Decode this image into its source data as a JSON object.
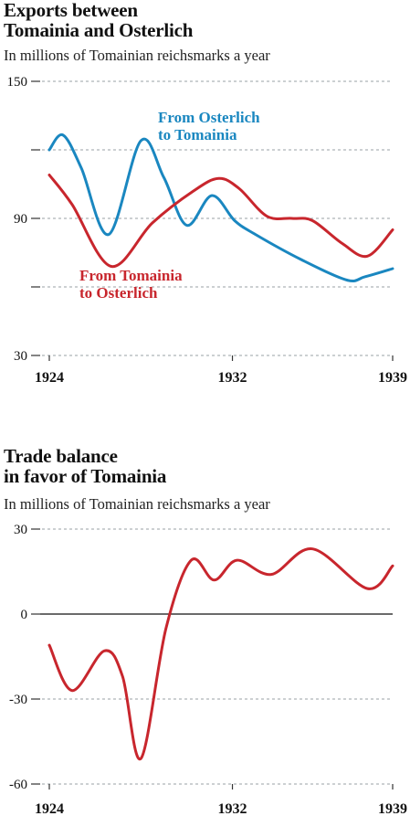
{
  "chart_data": [
    {
      "type": "line",
      "title_lines": [
        "Exports between",
        "Tomainia and Osterlich"
      ],
      "subtitle": "In millions of Tomainian reichsmarks a year",
      "ylim": [
        30,
        150
      ],
      "yticks": [
        30,
        60,
        90,
        120,
        150
      ],
      "ytick_labels": [
        "30",
        "",
        "90",
        "",
        "150"
      ],
      "xlim": [
        1924,
        1939
      ],
      "xtick_values": [
        1924,
        1932,
        1939
      ],
      "xtick_labels": [
        "1924",
        "1932",
        "1939"
      ],
      "grid": true,
      "series": [
        {
          "name": "From Osterlich to Tomainia",
          "label_lines": [
            "From Osterlich",
            "to Tomainia"
          ],
          "color": "#1a87c0",
          "x": [
            1924,
            1924.6,
            1925.4,
            1926.6,
            1928,
            1929,
            1930,
            1931.1,
            1932.1,
            1933,
            1935,
            1937,
            1937.8,
            1939
          ],
          "y": [
            120,
            126.5,
            112,
            83,
            124,
            108,
            87,
            100,
            89,
            83,
            72,
            63,
            64.5,
            68
          ]
        },
        {
          "name": "From Tomainia to Osterlich",
          "label_lines": [
            "From Tomainia",
            "to Osterlich"
          ],
          "color": "#c8262d",
          "x": [
            1924,
            1925,
            1926.7,
            1928.5,
            1930.3,
            1931.4,
            1932.3,
            1933.5,
            1934.6,
            1935.5,
            1936.8,
            1937.9,
            1939
          ],
          "y": [
            109,
            96,
            69,
            88,
            102,
            107.5,
            103,
            91,
            90,
            89,
            79,
            73.5,
            85
          ]
        }
      ]
    },
    {
      "type": "line",
      "title_lines": [
        "Trade balance",
        "in favor of Tomainia"
      ],
      "subtitle": "In millions of Tomainian reichsmarks a year",
      "ylim": [
        -60,
        30
      ],
      "yticks": [
        -60,
        -30,
        0,
        30
      ],
      "ytick_labels": [
        "-60",
        "-30",
        "0",
        "30"
      ],
      "xlim": [
        1924,
        1939
      ],
      "xtick_values": [
        1924,
        1932,
        1939
      ],
      "xtick_labels": [
        "1924",
        "1932",
        "1939"
      ],
      "grid": true,
      "zero_line": true,
      "series": [
        {
          "name": "",
          "color": "#c8262d",
          "x": [
            1924,
            1925,
            1926.4,
            1927.2,
            1928,
            1929.1,
            1930.2,
            1931.2,
            1932.2,
            1933.7,
            1935.5,
            1937.9,
            1939
          ],
          "y": [
            -11,
            -27,
            -13,
            -22,
            -51,
            -5,
            19,
            12,
            19,
            14,
            23,
            9,
            17
          ]
        }
      ]
    }
  ]
}
